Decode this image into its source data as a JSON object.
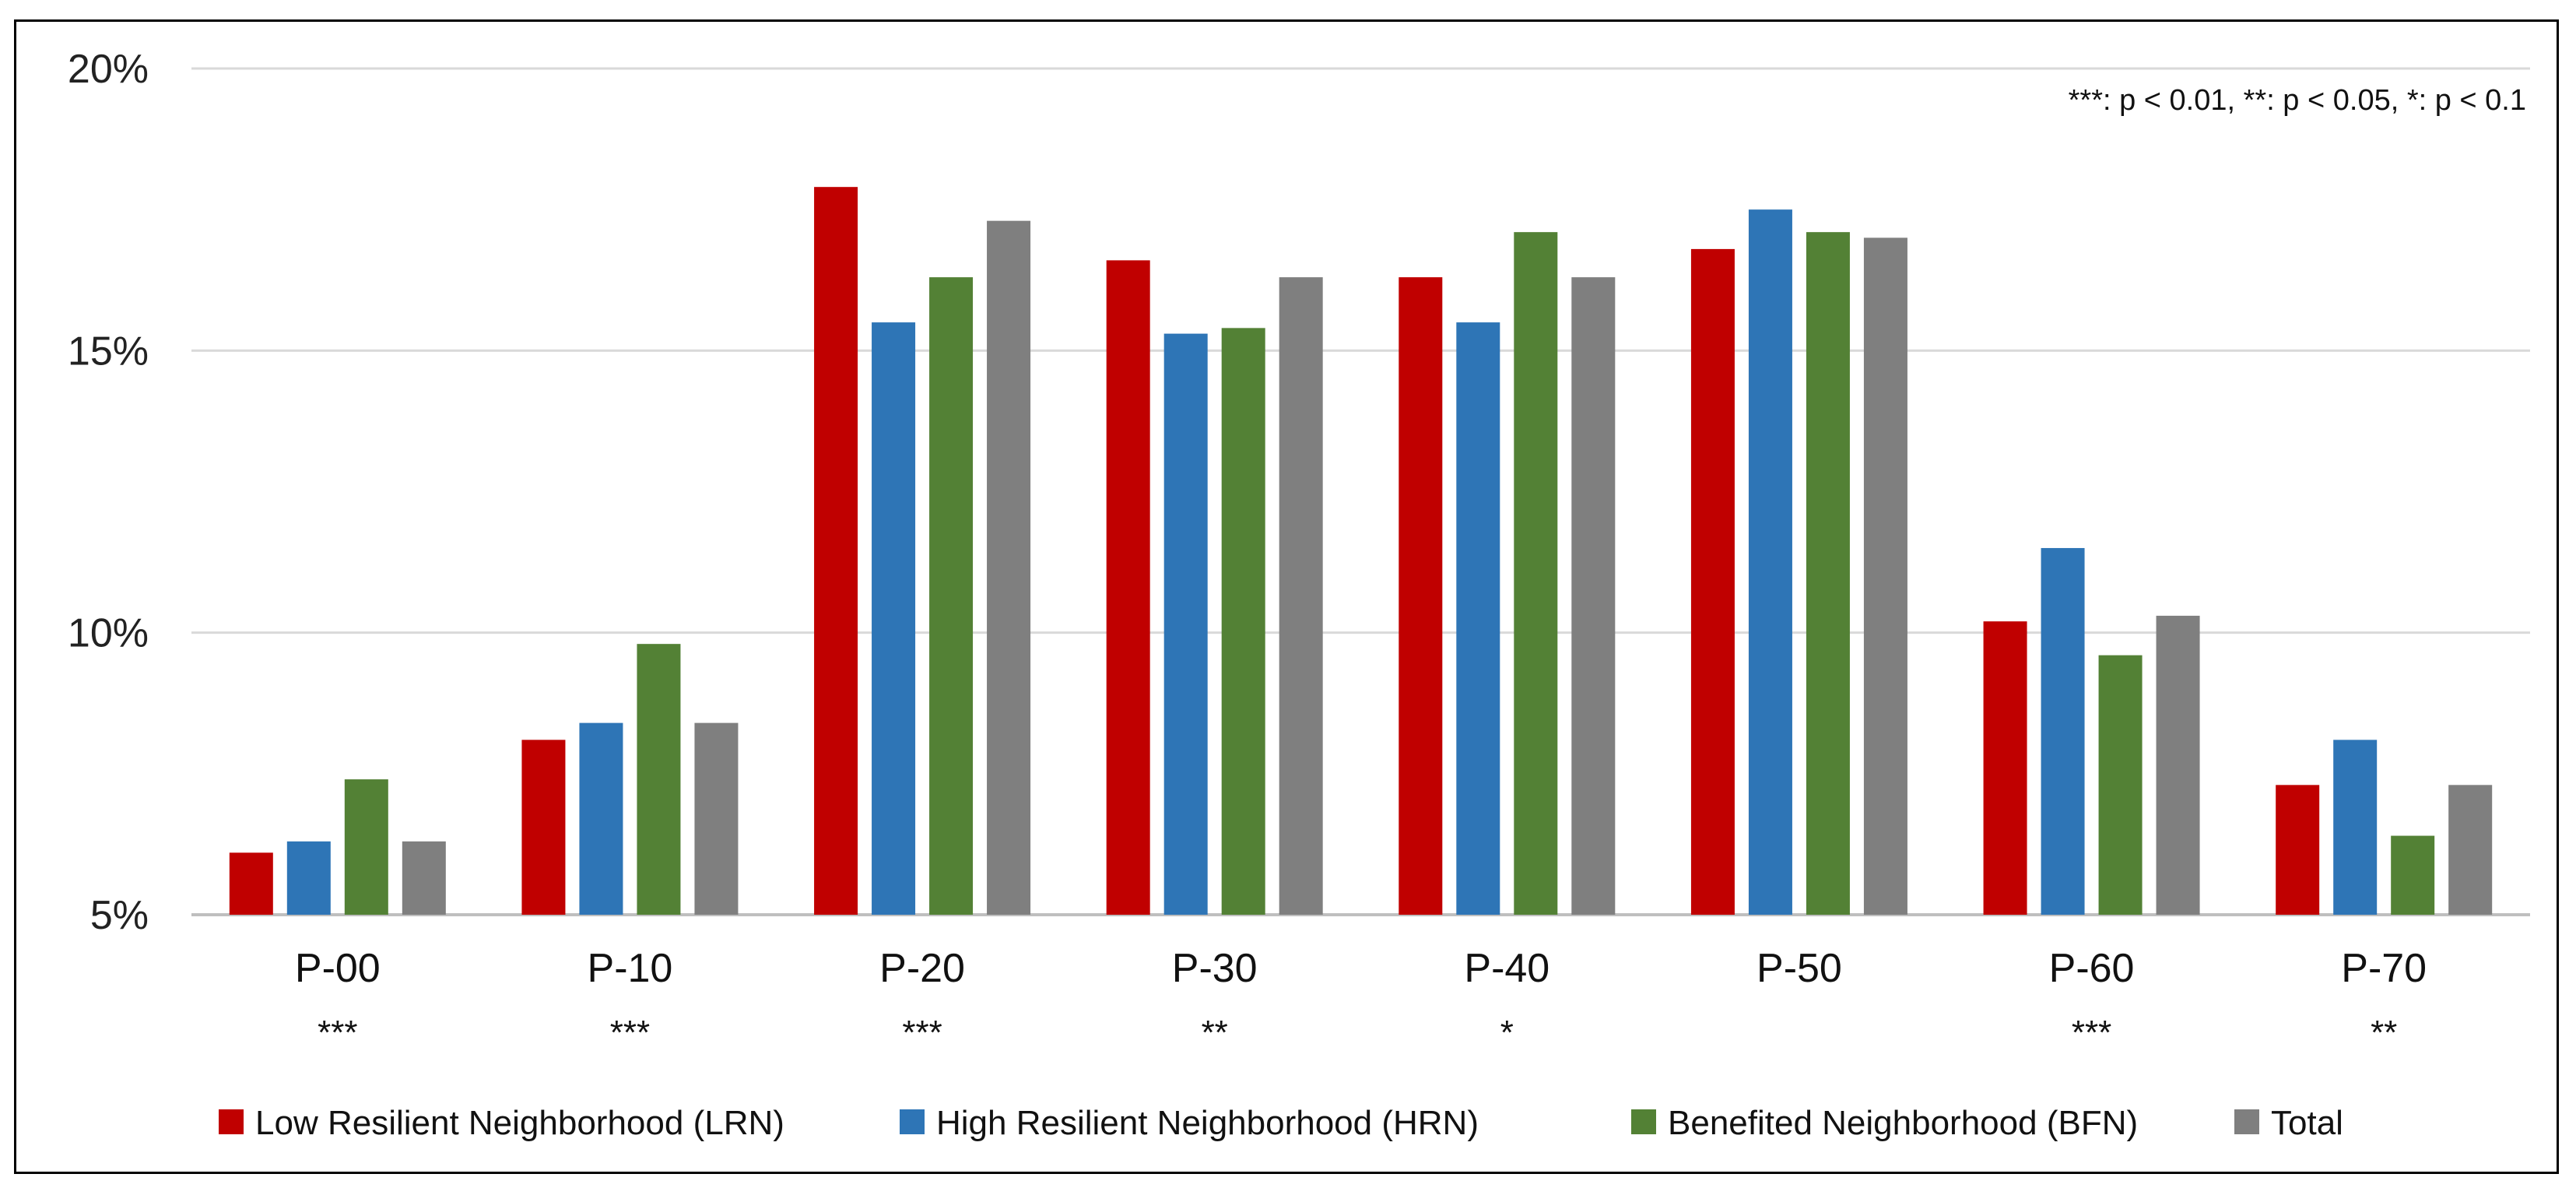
{
  "chart_data": {
    "type": "bar",
    "title": "",
    "xlabel": "",
    "ylabel": "",
    "ylim": [
      5,
      20
    ],
    "yticks": [
      5,
      10,
      15,
      20
    ],
    "ytick_labels": [
      "5%",
      "10%",
      "15%",
      "20%"
    ],
    "grid": true,
    "categories": [
      "P-00",
      "P-10",
      "P-20",
      "P-30",
      "P-40",
      "P-50",
      "P-60",
      "P-70"
    ],
    "significance": [
      "***",
      "***",
      "***",
      "**",
      "*",
      "",
      "***",
      "**"
    ],
    "annotation": "***: p < 0.01, **: p < 0.05, *: p < 0.1",
    "legend_position": "bottom",
    "series": [
      {
        "name": "Low Resilient Neighborhood (LRN)",
        "color": "#C00000",
        "values": [
          6.1,
          8.1,
          17.9,
          16.6,
          16.3,
          16.8,
          10.2,
          7.3
        ]
      },
      {
        "name": "High Resilient Neighborhood (HRN)",
        "color": "#2E75B6",
        "values": [
          6.3,
          8.4,
          15.5,
          15.3,
          15.5,
          17.5,
          11.5,
          8.1
        ]
      },
      {
        "name": "Benefited Neighborhood (BFN)",
        "color": "#538135",
        "values": [
          7.4,
          9.8,
          16.3,
          15.4,
          17.1,
          17.1,
          9.6,
          6.4
        ]
      },
      {
        "name": "Total",
        "color": "#7F7F7F",
        "values": [
          6.3,
          8.4,
          17.3,
          16.3,
          16.3,
          17.0,
          10.3,
          7.3
        ]
      }
    ]
  }
}
